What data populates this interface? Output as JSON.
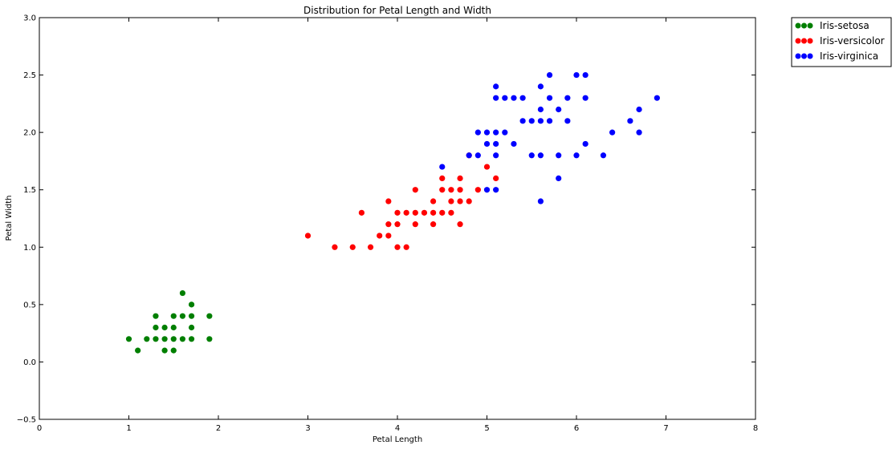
{
  "chart_data": {
    "type": "scatter",
    "title": "Distribution for Petal Length and Width",
    "xlabel": "Petal Length",
    "ylabel": "Petal Width",
    "xlim": [
      0,
      8
    ],
    "ylim": [
      -0.5,
      3.0
    ],
    "xticks": [
      "0",
      "1",
      "2",
      "3",
      "4",
      "5",
      "6",
      "7",
      "8"
    ],
    "yticks": [
      "−0.5",
      "0.0",
      "0.5",
      "1.0",
      "1.5",
      "2.0",
      "2.5",
      "3.0"
    ],
    "grid": false,
    "legend_position": "outside-top-right",
    "series": [
      {
        "name": "Iris-setosa",
        "color": "#007f00",
        "points": [
          [
            1.0,
            0.2
          ],
          [
            1.1,
            0.1
          ],
          [
            1.2,
            0.2
          ],
          [
            1.3,
            0.2
          ],
          [
            1.3,
            0.3
          ],
          [
            1.3,
            0.4
          ],
          [
            1.4,
            0.1
          ],
          [
            1.4,
            0.2
          ],
          [
            1.4,
            0.3
          ],
          [
            1.5,
            0.1
          ],
          [
            1.5,
            0.2
          ],
          [
            1.5,
            0.3
          ],
          [
            1.5,
            0.4
          ],
          [
            1.6,
            0.2
          ],
          [
            1.6,
            0.4
          ],
          [
            1.6,
            0.6
          ],
          [
            1.7,
            0.2
          ],
          [
            1.7,
            0.3
          ],
          [
            1.7,
            0.4
          ],
          [
            1.7,
            0.5
          ],
          [
            1.9,
            0.2
          ],
          [
            1.9,
            0.4
          ]
        ]
      },
      {
        "name": "Iris-versicolor",
        "color": "#ff0000",
        "points": [
          [
            3.0,
            1.1
          ],
          [
            3.3,
            1.0
          ],
          [
            3.5,
            1.0
          ],
          [
            3.6,
            1.3
          ],
          [
            3.7,
            1.0
          ],
          [
            3.8,
            1.1
          ],
          [
            3.9,
            1.1
          ],
          [
            3.9,
            1.2
          ],
          [
            3.9,
            1.4
          ],
          [
            4.0,
            1.0
          ],
          [
            4.0,
            1.2
          ],
          [
            4.0,
            1.3
          ],
          [
            4.1,
            1.0
          ],
          [
            4.1,
            1.3
          ],
          [
            4.2,
            1.2
          ],
          [
            4.2,
            1.3
          ],
          [
            4.2,
            1.5
          ],
          [
            4.3,
            1.3
          ],
          [
            4.4,
            1.2
          ],
          [
            4.4,
            1.3
          ],
          [
            4.4,
            1.4
          ],
          [
            4.5,
            1.3
          ],
          [
            4.5,
            1.5
          ],
          [
            4.5,
            1.6
          ],
          [
            4.6,
            1.3
          ],
          [
            4.6,
            1.4
          ],
          [
            4.6,
            1.5
          ],
          [
            4.7,
            1.2
          ],
          [
            4.7,
            1.4
          ],
          [
            4.7,
            1.5
          ],
          [
            4.7,
            1.6
          ],
          [
            4.8,
            1.4
          ],
          [
            4.8,
            1.8
          ],
          [
            4.9,
            1.5
          ],
          [
            5.0,
            1.7
          ],
          [
            5.1,
            1.6
          ]
        ]
      },
      {
        "name": "Iris-virginica",
        "color": "#0000ff",
        "points": [
          [
            4.5,
            1.7
          ],
          [
            4.8,
            1.8
          ],
          [
            4.9,
            1.8
          ],
          [
            4.9,
            2.0
          ],
          [
            5.0,
            1.5
          ],
          [
            5.0,
            1.9
          ],
          [
            5.0,
            2.0
          ],
          [
            5.1,
            1.5
          ],
          [
            5.1,
            1.8
          ],
          [
            5.1,
            1.9
          ],
          [
            5.1,
            2.0
          ],
          [
            5.1,
            2.3
          ],
          [
            5.1,
            2.4
          ],
          [
            5.2,
            2.0
          ],
          [
            5.2,
            2.3
          ],
          [
            5.3,
            1.9
          ],
          [
            5.3,
            2.3
          ],
          [
            5.4,
            2.1
          ],
          [
            5.4,
            2.3
          ],
          [
            5.5,
            1.8
          ],
          [
            5.5,
            2.1
          ],
          [
            5.6,
            1.4
          ],
          [
            5.6,
            1.8
          ],
          [
            5.6,
            2.1
          ],
          [
            5.6,
            2.2
          ],
          [
            5.6,
            2.4
          ],
          [
            5.7,
            2.1
          ],
          [
            5.7,
            2.3
          ],
          [
            5.7,
            2.5
          ],
          [
            5.8,
            1.6
          ],
          [
            5.8,
            1.8
          ],
          [
            5.8,
            2.2
          ],
          [
            5.9,
            2.1
          ],
          [
            5.9,
            2.3
          ],
          [
            6.0,
            1.8
          ],
          [
            6.0,
            2.5
          ],
          [
            6.1,
            1.9
          ],
          [
            6.1,
            2.3
          ],
          [
            6.1,
            2.5
          ],
          [
            6.3,
            1.8
          ],
          [
            6.4,
            2.0
          ],
          [
            6.6,
            2.1
          ],
          [
            6.7,
            2.0
          ],
          [
            6.7,
            2.2
          ],
          [
            6.9,
            2.3
          ]
        ]
      }
    ]
  }
}
